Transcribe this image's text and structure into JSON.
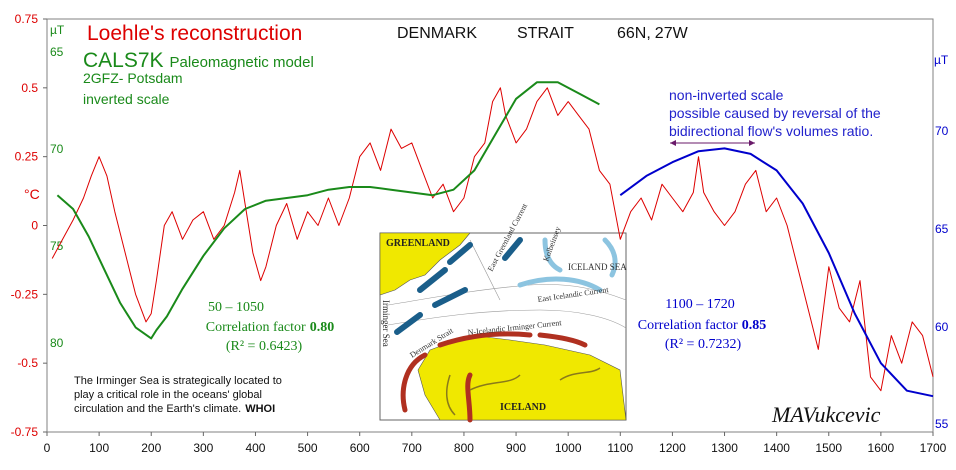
{
  "chart_data": {
    "type": "line",
    "title": "Loehle's reconstruction",
    "subtitle": "CALS7K Paleomagnetic model",
    "header": {
      "location": "DENMARK",
      "strait": "STRAIT",
      "coords_lat": "66N,",
      "coords_lon": "27W"
    },
    "model_source": "2GFZ- Potsdam",
    "model_source_prefix": "CALS7K",
    "model_source_suffix": "Paleomagnetic model",
    "inverted_note": "inverted scale",
    "non_inverted_note": [
      "non-inverted scale",
      "possible caused by reversal of the",
      "bidirectional flow's volumes ratio."
    ],
    "x_axis": {
      "min": 0,
      "max": 1700,
      "ticks": [
        0,
        100,
        200,
        300,
        400,
        500,
        600,
        700,
        800,
        900,
        1000,
        1100,
        1200,
        1300,
        1400,
        1500,
        1600,
        1700
      ]
    },
    "y_left": {
      "label": "°C",
      "min": -0.75,
      "max": 0.75,
      "ticks": [
        0.75,
        0.5,
        0.25,
        0,
        -0.25,
        -0.5,
        -0.75
      ],
      "tick_labels": [
        "0.75",
        "0.5",
        "0.25",
        "0",
        "-0.25",
        "-0.5",
        "-0.75"
      ]
    },
    "y_left_inverted": {
      "label": "µT",
      "ticks": [
        65,
        70,
        75,
        80
      ],
      "tick_labels": [
        "65",
        "70",
        "75",
        "80"
      ]
    },
    "y_right": {
      "label": "µT",
      "ticks": [
        70,
        65,
        60,
        55
      ],
      "tick_labels": [
        "70",
        "65",
        "60",
        "55"
      ]
    },
    "series": [
      {
        "name": "Loehle's reconstruction",
        "color": "#dd0000",
        "x": [
          10,
          30,
          50,
          70,
          85,
          100,
          115,
          130,
          150,
          170,
          190,
          200,
          210,
          225,
          240,
          260,
          280,
          300,
          320,
          340,
          360,
          370,
          380,
          395,
          410,
          420,
          440,
          460,
          480,
          500,
          520,
          540,
          560,
          580,
          600,
          620,
          640,
          660,
          680,
          700,
          720,
          740,
          760,
          780,
          800,
          820,
          840,
          855,
          870,
          880,
          900,
          920,
          940,
          960,
          980,
          1000,
          1020,
          1040,
          1060,
          1080,
          1100,
          1120,
          1140,
          1160,
          1180,
          1200,
          1220,
          1240,
          1250,
          1260,
          1280,
          1300,
          1320,
          1340,
          1360,
          1380,
          1400,
          1420,
          1440,
          1460,
          1480,
          1500,
          1520,
          1540,
          1560,
          1580,
          1600,
          1620,
          1640,
          1660,
          1680,
          1700
        ],
        "y": [
          -0.12,
          -0.05,
          0.02,
          0.1,
          0.18,
          0.25,
          0.18,
          0.05,
          -0.1,
          -0.25,
          -0.35,
          -0.32,
          -0.2,
          0.0,
          0.05,
          -0.05,
          0.02,
          0.05,
          -0.05,
          0.0,
          0.12,
          0.2,
          0.08,
          -0.1,
          -0.2,
          -0.15,
          0.0,
          0.08,
          -0.05,
          0.05,
          0.0,
          0.1,
          0.0,
          0.1,
          0.25,
          0.3,
          0.2,
          0.35,
          0.28,
          0.3,
          0.2,
          0.1,
          0.15,
          0.05,
          0.1,
          0.25,
          0.3,
          0.45,
          0.5,
          0.4,
          0.3,
          0.35,
          0.45,
          0.5,
          0.4,
          0.45,
          0.4,
          0.35,
          0.2,
          0.15,
          -0.05,
          0.05,
          0.1,
          0.02,
          0.15,
          0.1,
          0.05,
          0.12,
          0.25,
          0.12,
          0.05,
          0.0,
          0.05,
          0.15,
          0.2,
          0.05,
          0.1,
          0.0,
          -0.15,
          -0.3,
          -0.45,
          -0.15,
          -0.3,
          -0.35,
          -0.2,
          -0.55,
          -0.6,
          -0.4,
          -0.5,
          -0.35,
          -0.4,
          -0.55
        ]
      },
      {
        "name": "CALS7K Paleomagnetic model (inverted)",
        "color": "#1a8a1a",
        "x": [
          20,
          50,
          80,
          110,
          140,
          170,
          200,
          210,
          230,
          260,
          300,
          340,
          380,
          420,
          460,
          500,
          540,
          580,
          620,
          660,
          700,
          740,
          780,
          820,
          860,
          900,
          940,
          980,
          1020,
          1060
        ],
        "y": [
          0.11,
          0.06,
          -0.04,
          -0.16,
          -0.28,
          -0.37,
          -0.41,
          -0.38,
          -0.33,
          -0.23,
          -0.11,
          -0.01,
          0.06,
          0.09,
          0.1,
          0.11,
          0.13,
          0.14,
          0.14,
          0.13,
          0.12,
          0.11,
          0.13,
          0.2,
          0.33,
          0.46,
          0.52,
          0.52,
          0.48,
          0.44
        ]
      },
      {
        "name": "CALS7K Paleomagnetic model (non-inverted)",
        "color": "#0000cc",
        "x": [
          1100,
          1150,
          1200,
          1250,
          1300,
          1350,
          1400,
          1450,
          1500,
          1550,
          1600,
          1650,
          1700
        ],
        "y": [
          0.11,
          0.18,
          0.23,
          0.27,
          0.28,
          0.26,
          0.2,
          0.08,
          -0.1,
          -0.32,
          -0.5,
          -0.6,
          -0.62
        ]
      }
    ],
    "annotations": {
      "left_range": "50 – 1050",
      "left_corr_label": "Correlation factor",
      "left_corr_value": "0.80",
      "left_r2": "(R² = 0.6423)",
      "right_range": "1100 – 1720",
      "right_corr_label": "Correlation factor",
      "right_corr_value": "0.85",
      "right_r2": "(R² = 0.7232)",
      "whoi_text": [
        "The Irminger Sea is strategically located to",
        "play a critical role in the oceans' global",
        "circulation and the Earth's climate.",
        "WHOI"
      ],
      "author": "MAVukcevic"
    },
    "map_inset": {
      "labels": [
        "GREENLAND",
        "ICELAND SEA",
        "East Greenland Current",
        "Kolbeinsey",
        "East Icelandic Current",
        "Irminger Sea",
        "Denmark Strait",
        "N-Icelandic Irminger Current",
        "ICELAND"
      ]
    },
    "colors": {
      "reconstruction": "#dd0000",
      "model_inverted": "#1a8a1a",
      "model_noninverted": "#0000cc",
      "greenland": "#f0e800",
      "iceland": "#f0e800"
    }
  }
}
